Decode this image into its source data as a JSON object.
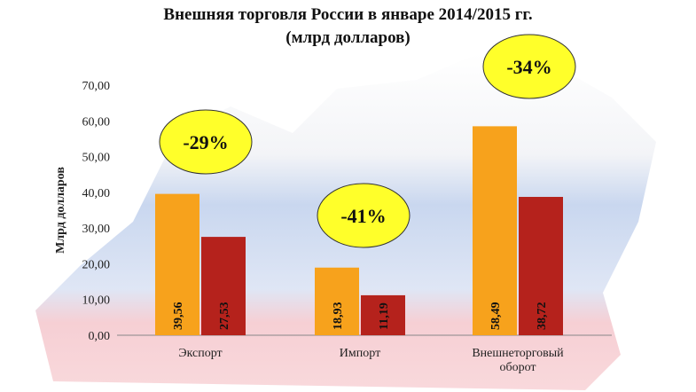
{
  "chart_data": {
    "type": "bar",
    "title": "Внешняя торговля России в январе 2014/2015 гг.",
    "subtitle": "(млрд долларов)",
    "ylabel": "Млрд долларов",
    "xlabel": "",
    "ylim": [
      0,
      70
    ],
    "yticks": [
      "0,00",
      "10,00",
      "20,00",
      "30,00",
      "40,00",
      "50,00",
      "60,00",
      "70,00"
    ],
    "categories": [
      "Экспорт",
      "Импорт",
      "Внешнеторговый оборот"
    ],
    "series": [
      {
        "values": [
          39.56,
          18.93,
          58.49
        ],
        "labels": [
          "39,56",
          "18,93",
          "58,49"
        ],
        "color": "#f7a21c"
      },
      {
        "values": [
          27.53,
          11.19,
          38.72
        ],
        "labels": [
          "27,53",
          "11,19",
          "38,72"
        ],
        "color": "#b5221c"
      }
    ],
    "annotations": [
      "-29%",
      "-41%",
      "-34%"
    ],
    "annotation_color": "#ffff2a",
    "grid": false,
    "legend": "none"
  }
}
